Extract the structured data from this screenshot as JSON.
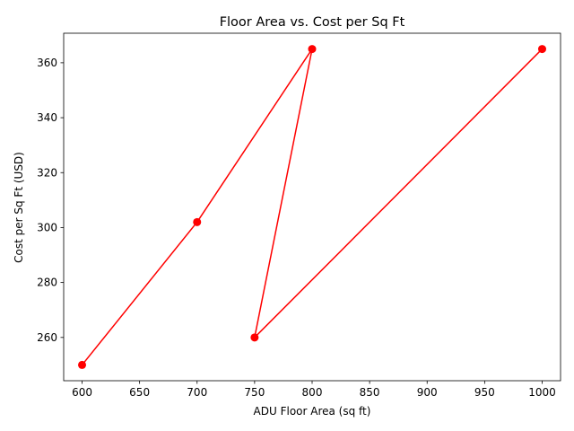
{
  "chart_data": {
    "type": "line",
    "title": "Floor Area vs. Cost per Sq Ft",
    "xlabel": "ADU Floor Area (sq ft)",
    "ylabel": "Cost per Sq Ft (USD)",
    "xlim": [
      584,
      1016
    ],
    "ylim": [
      244.25,
      370.75
    ],
    "x_ticks": [
      600,
      650,
      700,
      750,
      800,
      850,
      900,
      950,
      1000
    ],
    "y_ticks": [
      260,
      280,
      300,
      320,
      340,
      360
    ],
    "grid": false,
    "legend": "none",
    "series": [
      {
        "color": "#ff0000",
        "marker": "circle",
        "points": [
          {
            "x": 600,
            "y": 250
          },
          {
            "x": 700,
            "y": 302
          },
          {
            "x": 800,
            "y": 365
          },
          {
            "x": 750,
            "y": 260
          },
          {
            "x": 1000,
            "y": 365
          }
        ]
      }
    ]
  }
}
